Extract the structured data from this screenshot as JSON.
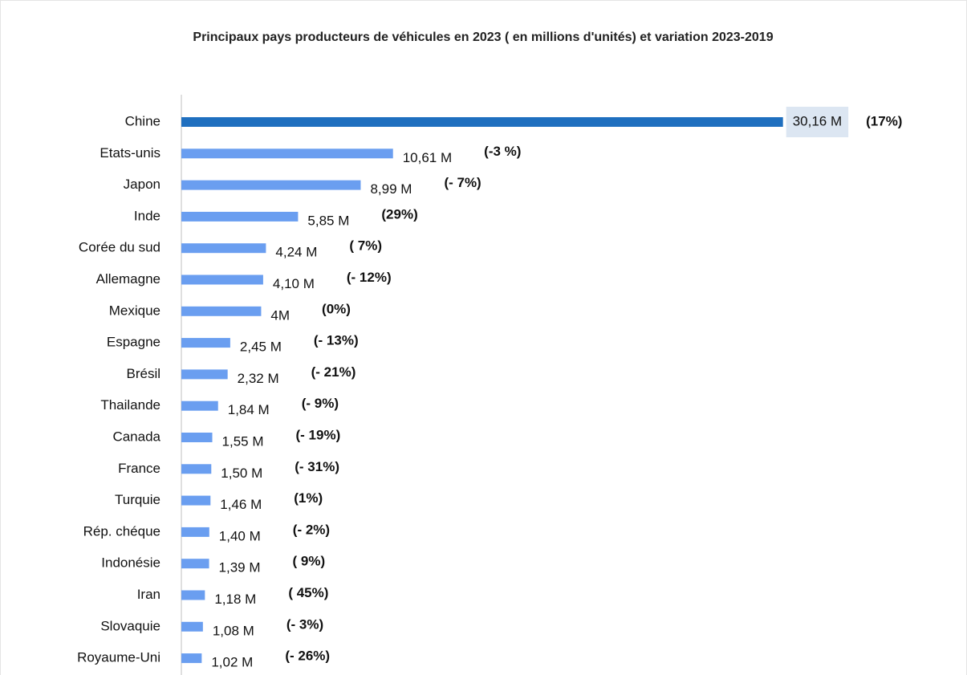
{
  "chart_data": {
    "type": "bar",
    "orientation": "horizontal",
    "title": "Principaux pays producteurs de véhicules en 2023 ( en millions d'unités) et variation 2023-2019",
    "categories": [
      "Chine",
      "Etats-unis",
      "Japon",
      "Inde",
      "Corée du sud",
      "Allemagne",
      "Mexique",
      "Espagne",
      "Brésil",
      "Thailande",
      "Canada",
      "France",
      "Turquie",
      "Rép. chéque",
      "Indonésie",
      "Iran",
      "Slovaquie",
      "Royaume-Uni"
    ],
    "values": [
      30.16,
      10.61,
      8.99,
      5.85,
      4.24,
      4.1,
      4,
      2.45,
      2.32,
      1.84,
      1.55,
      1.5,
      1.46,
      1.4,
      1.39,
      1.18,
      1.08,
      1.02
    ],
    "value_labels": [
      "30,16 M",
      "10,61 M",
      "8,99 M",
      "5,85 M",
      "4,24 M",
      "4,10 M",
      "4M",
      "2,45 M",
      "2,32 M",
      "1,84 M",
      "1,55 M",
      "1,50 M",
      "1,46 M",
      "1,40 M",
      "1,39 M",
      "1,18 M",
      "1,08 M",
      "1,02 M"
    ],
    "colors": [
      "#1f6fbf",
      "#6a9ef0",
      "#6a9ef0",
      "#6a9ef0",
      "#6a9ef0",
      "#6a9ef0",
      "#6a9ef0",
      "#6a9ef0",
      "#6a9ef0",
      "#6a9ef0",
      "#6a9ef0",
      "#6a9ef0",
      "#6a9ef0",
      "#6a9ef0",
      "#6a9ef0",
      "#6a9ef0",
      "#6a9ef0",
      "#6a9ef0"
    ],
    "annotations": [
      "(17%)",
      "(-3 %)",
      "(- 7%)",
      "(29%)",
      "( 7%)",
      "(- 12%)",
      "(0%)",
      "(- 13%)",
      "(- 21%)",
      "(- 9%)",
      "(- 19%)",
      "(- 31%)",
      "(1%)",
      "(- 2%)",
      "( 9%)",
      "( 45%)",
      "(- 3%)",
      "(- 26%)"
    ],
    "annotation_colors": [
      "#1e7a1e",
      "#c00000",
      "#c00000",
      "#1e7a1e",
      "#1e7a1e",
      "#c00000",
      "#000000",
      "#c00000",
      "#c00000",
      "#c00000",
      "#c00000",
      "#c00000",
      "#1e7a1e",
      "#c00000",
      "#1e7a1e",
      "#1e7a1e",
      "#c00000",
      "#c00000"
    ],
    "highlight_label_background": [
      "#dce6f2"
    ],
    "xlim": [
      0,
      35
    ]
  }
}
